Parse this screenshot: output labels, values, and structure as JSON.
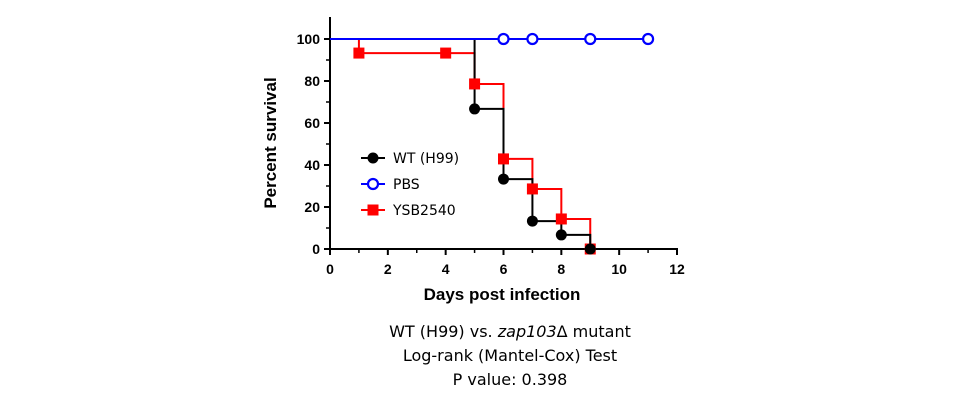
{
  "chart_data": {
    "type": "line",
    "step": true,
    "xlabel": "Days post infection",
    "ylabel": "Percent survival",
    "xlim": [
      0,
      12
    ],
    "ylim": [
      0,
      100
    ],
    "xticks": [
      0,
      2,
      4,
      6,
      8,
      10,
      12
    ],
    "yticks": [
      0,
      20,
      40,
      60,
      80,
      100
    ],
    "grid": false,
    "legend_position": "left-middle",
    "series": [
      {
        "name": "WT (H99)",
        "color": "#000000",
        "marker": "filled-circle",
        "x": [
          0,
          5,
          6,
          7,
          8,
          9
        ],
        "y": [
          100,
          66.7,
          33.3,
          13.3,
          6.7,
          0
        ],
        "marker_points": [
          [
            5,
            66.7
          ],
          [
            6,
            33.3
          ],
          [
            7,
            13.3
          ],
          [
            8,
            6.7
          ],
          [
            9,
            0
          ]
        ]
      },
      {
        "name": "PBS",
        "color": "#0000FF",
        "marker": "open-circle",
        "x": [
          0,
          11
        ],
        "y": [
          100,
          100
        ],
        "marker_points": [
          [
            6,
            100
          ],
          [
            7,
            100
          ],
          [
            9,
            100
          ],
          [
            11,
            100
          ]
        ]
      },
      {
        "name": "YSB2540",
        "color": "#FF0000",
        "marker": "filled-square",
        "x": [
          0,
          1,
          5,
          6,
          7,
          8,
          9
        ],
        "y": [
          100,
          93.3,
          78.6,
          42.9,
          28.6,
          14.3,
          0
        ],
        "marker_points": [
          [
            1,
            93.3
          ],
          [
            4,
            93.3
          ],
          [
            5,
            78.6
          ],
          [
            6,
            42.9
          ],
          [
            7,
            28.6
          ],
          [
            8,
            14.3
          ],
          [
            9,
            0
          ]
        ]
      }
    ]
  },
  "caption": {
    "line1_prefix": "WT (H99) vs. ",
    "line1_italic": "zap103",
    "line1_suffix": "Δ mutant",
    "line2": "Log-rank (Mantel-Cox) Test",
    "line3": "P value: 0.398"
  }
}
